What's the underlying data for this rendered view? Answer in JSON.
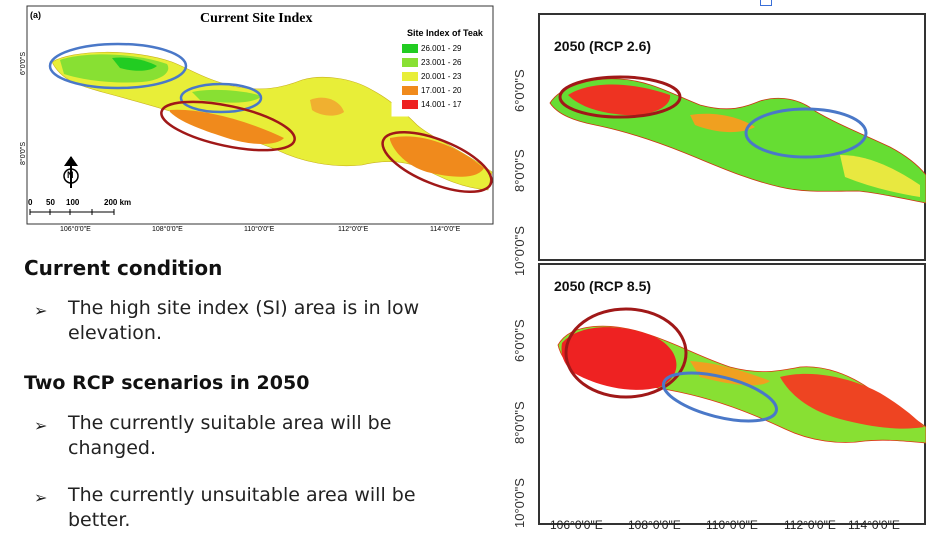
{
  "current_map": {
    "panel_letter": "(a)",
    "title": "Current Site Index",
    "lat_labels": [
      "6°0'0\"S",
      "8°0'0\"S"
    ],
    "lon_labels": [
      "106°0'0\"E",
      "108°0'0\"E",
      "110°0'0\"E",
      "112°0'0\"E",
      "114°0'0\"E"
    ],
    "legend": {
      "title": "Site Index of Teak",
      "items": [
        {
          "label": "26.001 - 29",
          "color": "#22cc22"
        },
        {
          "label": "23.001 - 26",
          "color": "#88e033"
        },
        {
          "label": "20.001 - 23",
          "color": "#e8ee38"
        },
        {
          "label": "17.001 - 20",
          "color": "#f08a1c"
        },
        {
          "label": "14.001 - 17",
          "color": "#ee2222"
        }
      ]
    },
    "north_symbol": "N",
    "scalebar_labels": [
      "0",
      "50",
      "100",
      "200 km"
    ]
  },
  "text": {
    "heading1": "Current condition",
    "bullet1": "The high site index (SI) area is in low elevation.",
    "heading2": "Two RCP scenarios in 2050",
    "bullet2": "The currently suitable area will be changed.",
    "bullet3": "The currently unsuitable area will be better.",
    "arrow_symbol": "➢"
  },
  "rcp26": {
    "title": "2050 (RCP 2.6)"
  },
  "rcp85": {
    "title": "2050 (RCP 8.5)"
  },
  "right_lat_labels": [
    "6°0'0\"S",
    "8°0'0\"S",
    "10°0'0\"S",
    "6°0'0\"S",
    "8°0'0\"S",
    "10°0'0\"S"
  ],
  "right_lon_labels": [
    "106°0'0\"E",
    "108°0'0\"E",
    "110°0'0\"E",
    "112°0'0\"E",
    "114°0'0\"E"
  ],
  "colors": {
    "ellipse_blue": "#4a78c8",
    "ellipse_red": "#a01818",
    "high": "#22cc22",
    "low": "#ee2222"
  }
}
